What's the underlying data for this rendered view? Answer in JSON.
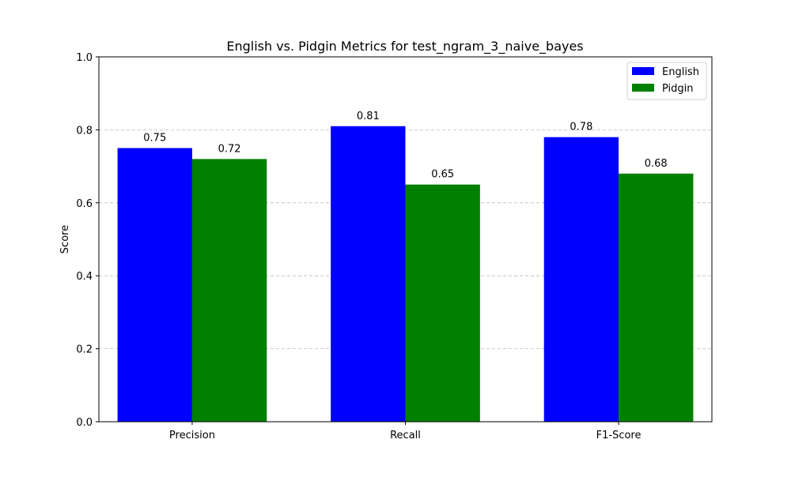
{
  "chart_data": {
    "type": "bar",
    "title": "English vs. Pidgin Metrics for test_ngram_3_naive_bayes",
    "xlabel": "",
    "ylabel": "Score",
    "categories": [
      "Precision",
      "Recall",
      "F1-Score"
    ],
    "series": [
      {
        "name": "English",
        "values": [
          0.75,
          0.81,
          0.78
        ],
        "labels": [
          "0.75",
          "0.81",
          "0.78"
        ],
        "color": "#0000ff"
      },
      {
        "name": "Pidgin",
        "values": [
          0.72,
          0.65,
          0.68
        ],
        "labels": [
          "0.72",
          "0.65",
          "0.68"
        ],
        "color": "#008000"
      }
    ],
    "ylim": [
      0,
      1.0
    ],
    "yticks": [
      0.0,
      0.2,
      0.4,
      0.6,
      0.8,
      1.0
    ],
    "ytick_labels": [
      "0.0",
      "0.2",
      "0.4",
      "0.6",
      "0.8",
      "1.0"
    ],
    "grid": {
      "axis": "y",
      "style": "dashed",
      "color": "#b0b0b0"
    },
    "legend": {
      "position": "top-right"
    }
  }
}
